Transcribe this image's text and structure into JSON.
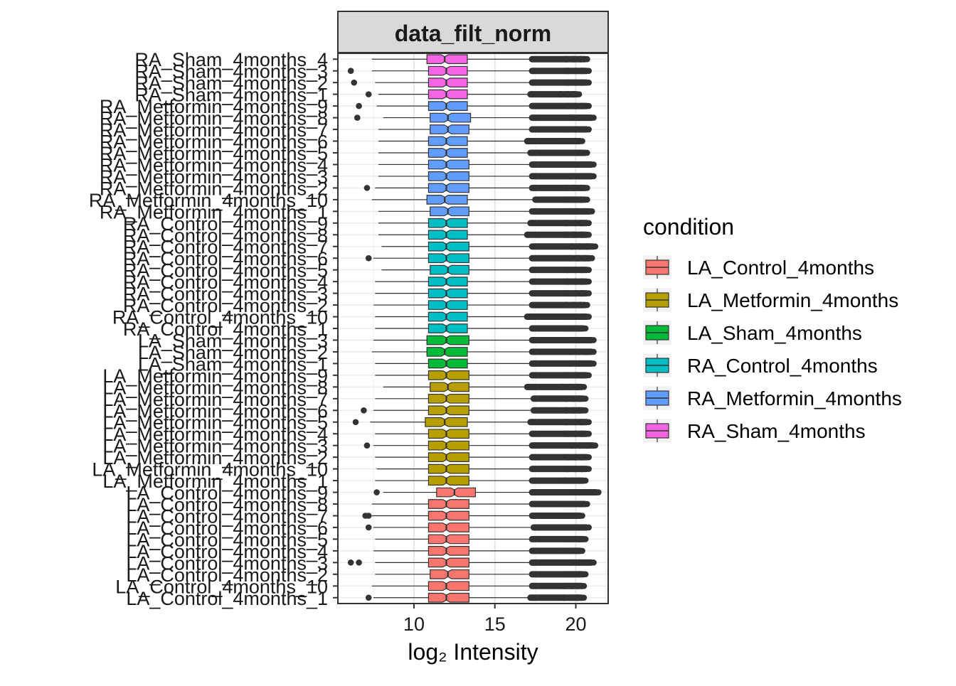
{
  "chart_data": {
    "type": "box",
    "orientation": "horizontal",
    "panel_title": "data_filt_norm",
    "xlabel": "log₂ Intensity",
    "xlim": [
      5.3,
      22.0
    ],
    "xticks": [
      10,
      15,
      20
    ],
    "xtick_labels": [
      "10",
      "15",
      "20"
    ],
    "grid": true,
    "legend": {
      "title": "condition",
      "position": "right",
      "entries": [
        {
          "name": "LA_Control_4months",
          "color": "#F8766D"
        },
        {
          "name": "LA_Metformin_4months",
          "color": "#B79F00"
        },
        {
          "name": "LA_Sham_4months",
          "color": "#00BA38"
        },
        {
          "name": "RA_Control_4months",
          "color": "#00BFC4"
        },
        {
          "name": "RA_Metformin_4months",
          "color": "#619CFF"
        },
        {
          "name": "RA_Sham_4months",
          "color": "#F564E3"
        }
      ]
    },
    "samples": [
      {
        "label": "LA_Control_4months_1",
        "group": 0,
        "whisker_low": 7.5,
        "q1": 10.9,
        "median": 12.0,
        "q3": 13.4,
        "whisker_high": 17.2,
        "max_outlier": 20.5,
        "low_outliers": [
          7.2
        ]
      },
      {
        "label": "LA_Control_4months_10",
        "group": 0,
        "whisker_low": 7.4,
        "q1": 10.9,
        "median": 12.0,
        "q3": 13.4,
        "whisker_high": 17.3,
        "max_outlier": 20.5,
        "low_outliers": []
      },
      {
        "label": "LA_Control_4months_2",
        "group": 0,
        "whisker_low": 7.6,
        "q1": 11.0,
        "median": 12.1,
        "q3": 13.4,
        "whisker_high": 17.3,
        "max_outlier": 20.6,
        "low_outliers": []
      },
      {
        "label": "LA_Control_4months_3",
        "group": 0,
        "whisker_low": 7.6,
        "q1": 10.9,
        "median": 12.0,
        "q3": 13.4,
        "whisker_high": 17.3,
        "max_outlier": 21.1,
        "low_outliers": [
          6.1,
          6.6
        ]
      },
      {
        "label": "LA_Control_4months_4",
        "group": 0,
        "whisker_low": 7.5,
        "q1": 10.9,
        "median": 12.0,
        "q3": 13.4,
        "whisker_high": 17.3,
        "max_outlier": 20.4,
        "low_outliers": []
      },
      {
        "label": "LA_Control_4months_5",
        "group": 0,
        "whisker_low": 7.6,
        "q1": 10.9,
        "median": 12.0,
        "q3": 13.4,
        "whisker_high": 17.3,
        "max_outlier": 20.6,
        "low_outliers": []
      },
      {
        "label": "LA_Control_4months_6",
        "group": 0,
        "whisker_low": 7.5,
        "q1": 10.9,
        "median": 12.0,
        "q3": 13.4,
        "whisker_high": 17.4,
        "max_outlier": 20.8,
        "low_outliers": [
          7.2
        ]
      },
      {
        "label": "LA_Control_4months_7",
        "group": 0,
        "whisker_low": 7.4,
        "q1": 10.9,
        "median": 12.0,
        "q3": 13.4,
        "whisker_high": 17.3,
        "max_outlier": 20.4,
        "low_outliers": [
          7.0,
          7.2
        ]
      },
      {
        "label": "LA_Control_4months_8",
        "group": 0,
        "whisker_low": 7.4,
        "q1": 10.9,
        "median": 12.0,
        "q3": 13.4,
        "whisker_high": 17.3,
        "max_outlier": 20.7,
        "low_outliers": []
      },
      {
        "label": "LA_Control_4months_9",
        "group": 0,
        "whisker_low": 8.1,
        "q1": 11.4,
        "median": 12.5,
        "q3": 13.8,
        "whisker_high": 17.3,
        "max_outlier": 21.4,
        "low_outliers": [
          7.7
        ]
      },
      {
        "label": "LA_Metformin_4months_1",
        "group": 1,
        "whisker_low": 7.6,
        "q1": 10.9,
        "median": 12.0,
        "q3": 13.4,
        "whisker_high": 17.3,
        "max_outlier": 20.6,
        "low_outliers": []
      },
      {
        "label": "LA_Metformin_4months_10",
        "group": 1,
        "whisker_low": 7.7,
        "q1": 10.9,
        "median": 12.0,
        "q3": 13.4,
        "whisker_high": 17.3,
        "max_outlier": 20.8,
        "low_outliers": []
      },
      {
        "label": "LA_Metformin_4months_2",
        "group": 1,
        "whisker_low": 7.6,
        "q1": 10.9,
        "median": 12.0,
        "q3": 13.4,
        "whisker_high": 17.3,
        "max_outlier": 20.8,
        "low_outliers": []
      },
      {
        "label": "LA_Metformin_4months_3",
        "group": 1,
        "whisker_low": 7.5,
        "q1": 10.9,
        "median": 12.0,
        "q3": 13.4,
        "whisker_high": 17.3,
        "max_outlier": 21.2,
        "low_outliers": [
          7.1
        ]
      },
      {
        "label": "LA_Metformin_4months_4",
        "group": 1,
        "whisker_low": 7.6,
        "q1": 10.9,
        "median": 12.0,
        "q3": 13.4,
        "whisker_high": 17.3,
        "max_outlier": 20.8,
        "low_outliers": []
      },
      {
        "label": "LA_Metformin_4months_5",
        "group": 1,
        "whisker_low": 7.3,
        "q1": 10.7,
        "median": 11.9,
        "q3": 13.3,
        "whisker_high": 17.2,
        "max_outlier": 20.8,
        "low_outliers": [
          6.4
        ]
      },
      {
        "label": "LA_Metformin_4months_6",
        "group": 1,
        "whisker_low": 7.5,
        "q1": 10.9,
        "median": 12.0,
        "q3": 13.4,
        "whisker_high": 17.4,
        "max_outlier": 20.6,
        "low_outliers": [
          6.9
        ]
      },
      {
        "label": "LA_Metformin_4months_7",
        "group": 1,
        "whisker_low": 7.6,
        "q1": 10.9,
        "median": 12.0,
        "q3": 13.4,
        "whisker_high": 17.4,
        "max_outlier": 20.6,
        "low_outliers": []
      },
      {
        "label": "LA_Metformin_4months_8",
        "group": 1,
        "whisker_low": 8.1,
        "q1": 11.0,
        "median": 12.1,
        "q3": 13.4,
        "whisker_high": 17.0,
        "max_outlier": 20.5,
        "low_outliers": []
      },
      {
        "label": "LA_Metformin_4months_9",
        "group": 1,
        "whisker_low": 7.6,
        "q1": 10.9,
        "median": 12.0,
        "q3": 13.4,
        "whisker_high": 17.3,
        "max_outlier": 20.8,
        "low_outliers": []
      },
      {
        "label": "LA_Sham_4months_1",
        "group": 2,
        "whisker_low": 7.6,
        "q1": 10.9,
        "median": 12.0,
        "q3": 13.3,
        "whisker_high": 17.3,
        "max_outlier": 21.1,
        "low_outliers": []
      },
      {
        "label": "LA_Sham_4months_2",
        "group": 2,
        "whisker_low": 7.4,
        "q1": 10.8,
        "median": 11.9,
        "q3": 13.3,
        "whisker_high": 17.3,
        "max_outlier": 21.1,
        "low_outliers": []
      },
      {
        "label": "LA_Sham_4months_3",
        "group": 2,
        "whisker_low": 7.5,
        "q1": 10.8,
        "median": 12.0,
        "q3": 13.4,
        "whisker_high": 17.3,
        "max_outlier": 21.1,
        "low_outliers": []
      },
      {
        "label": "RA_Control_4months_1",
        "group": 3,
        "whisker_low": 7.6,
        "q1": 10.9,
        "median": 12.0,
        "q3": 13.3,
        "whisker_high": 17.3,
        "max_outlier": 20.6,
        "low_outliers": []
      },
      {
        "label": "RA_Control_4months_10",
        "group": 3,
        "whisker_low": 7.6,
        "q1": 10.9,
        "median": 12.0,
        "q3": 13.3,
        "whisker_high": 17.0,
        "max_outlier": 20.8,
        "low_outliers": []
      },
      {
        "label": "RA_Control_4months_2",
        "group": 3,
        "whisker_low": 7.5,
        "q1": 10.9,
        "median": 12.0,
        "q3": 13.3,
        "whisker_high": 17.3,
        "max_outlier": 20.7,
        "low_outliers": []
      },
      {
        "label": "RA_Control_4months_3",
        "group": 3,
        "whisker_low": 7.6,
        "q1": 10.9,
        "median": 12.0,
        "q3": 13.3,
        "whisker_high": 17.3,
        "max_outlier": 20.8,
        "low_outliers": []
      },
      {
        "label": "RA_Control_4months_4",
        "group": 3,
        "whisker_low": 7.6,
        "q1": 10.9,
        "median": 12.0,
        "q3": 13.3,
        "whisker_high": 17.3,
        "max_outlier": 20.8,
        "low_outliers": []
      },
      {
        "label": "RA_Control_4months_5",
        "group": 3,
        "whisker_low": 8.0,
        "q1": 11.0,
        "median": 12.1,
        "q3": 13.4,
        "whisker_high": 17.3,
        "max_outlier": 20.8,
        "low_outliers": []
      },
      {
        "label": "RA_Control_4months_6",
        "group": 3,
        "whisker_low": 7.5,
        "q1": 10.9,
        "median": 12.0,
        "q3": 13.4,
        "whisker_high": 17.3,
        "max_outlier": 21.0,
        "low_outliers": [
          7.2
        ]
      },
      {
        "label": "RA_Control_4months_7",
        "group": 3,
        "whisker_low": 8.0,
        "q1": 10.9,
        "median": 12.0,
        "q3": 13.4,
        "whisker_high": 17.3,
        "max_outlier": 21.2,
        "low_outliers": []
      },
      {
        "label": "RA_Control_4months_8",
        "group": 3,
        "whisker_low": 7.8,
        "q1": 10.9,
        "median": 12.0,
        "q3": 13.3,
        "whisker_high": 17.0,
        "max_outlier": 20.8,
        "low_outliers": []
      },
      {
        "label": "RA_Control_4months_9",
        "group": 3,
        "whisker_low": 7.8,
        "q1": 10.9,
        "median": 12.0,
        "q3": 13.3,
        "whisker_high": 17.2,
        "max_outlier": 20.8,
        "low_outliers": []
      },
      {
        "label": "RA_Metformin_4months_1",
        "group": 4,
        "whisker_low": 7.8,
        "q1": 11.0,
        "median": 12.1,
        "q3": 13.4,
        "whisker_high": 17.3,
        "max_outlier": 21.0,
        "low_outliers": []
      },
      {
        "label": "RA_Metformin_4months_10",
        "group": 4,
        "whisker_low": 7.4,
        "q1": 10.8,
        "median": 11.9,
        "q3": 13.3,
        "whisker_high": 17.5,
        "max_outlier": 20.7,
        "low_outliers": []
      },
      {
        "label": "RA_Metformin_4months_2",
        "group": 4,
        "whisker_low": 7.6,
        "q1": 10.9,
        "median": 12.0,
        "q3": 13.4,
        "whisker_high": 17.3,
        "max_outlier": 20.7,
        "low_outliers": [
          7.1
        ]
      },
      {
        "label": "RA_Metformin_4months_3",
        "group": 4,
        "whisker_low": 7.8,
        "q1": 10.9,
        "median": 12.0,
        "q3": 13.4,
        "whisker_high": 17.3,
        "max_outlier": 21.1,
        "low_outliers": []
      },
      {
        "label": "RA_Metformin_4months_4",
        "group": 4,
        "whisker_low": 7.8,
        "q1": 10.9,
        "median": 12.0,
        "q3": 13.4,
        "whisker_high": 17.3,
        "max_outlier": 21.1,
        "low_outliers": []
      },
      {
        "label": "RA_Metformin_4months_5",
        "group": 4,
        "whisker_low": 7.8,
        "q1": 10.9,
        "median": 12.0,
        "q3": 13.3,
        "whisker_high": 17.2,
        "max_outlier": 20.7,
        "low_outliers": []
      },
      {
        "label": "RA_Metformin_4months_6",
        "group": 4,
        "whisker_low": 7.8,
        "q1": 10.9,
        "median": 12.0,
        "q3": 13.3,
        "whisker_high": 17.0,
        "max_outlier": 20.4,
        "low_outliers": []
      },
      {
        "label": "RA_Metformin_4months_7",
        "group": 4,
        "whisker_low": 7.8,
        "q1": 11.0,
        "median": 12.1,
        "q3": 13.4,
        "whisker_high": 17.3,
        "max_outlier": 20.8,
        "low_outliers": []
      },
      {
        "label": "RA_Metformin_4months_8",
        "group": 4,
        "whisker_low": 8.1,
        "q1": 11.0,
        "median": 12.1,
        "q3": 13.5,
        "whisker_high": 17.3,
        "max_outlier": 21.1,
        "low_outliers": [
          6.5
        ]
      },
      {
        "label": "RA_Metformin_4months_9",
        "group": 4,
        "whisker_low": 7.7,
        "q1": 10.9,
        "median": 12.0,
        "q3": 13.3,
        "whisker_high": 17.3,
        "max_outlier": 20.8,
        "low_outliers": [
          6.6
        ]
      },
      {
        "label": "RA_Sham_4months_1",
        "group": 5,
        "whisker_low": 7.8,
        "q1": 10.9,
        "median": 12.0,
        "q3": 13.3,
        "whisker_high": 17.2,
        "max_outlier": 20.2,
        "low_outliers": [
          7.2
        ]
      },
      {
        "label": "RA_Sham_4months_2",
        "group": 5,
        "whisker_low": 7.6,
        "q1": 10.9,
        "median": 12.0,
        "q3": 13.3,
        "whisker_high": 17.3,
        "max_outlier": 20.8,
        "low_outliers": [
          6.3
        ]
      },
      {
        "label": "RA_Sham_4months_3",
        "group": 5,
        "whisker_low": 7.4,
        "q1": 10.9,
        "median": 12.0,
        "q3": 13.3,
        "whisker_high": 17.3,
        "max_outlier": 20.8,
        "low_outliers": [
          6.1
        ]
      },
      {
        "label": "RA_Sham_4months_4",
        "group": 5,
        "whisker_low": 7.4,
        "q1": 10.8,
        "median": 11.9,
        "q3": 13.3,
        "whisker_high": 17.3,
        "max_outlier": 20.7,
        "low_outliers": []
      }
    ]
  }
}
